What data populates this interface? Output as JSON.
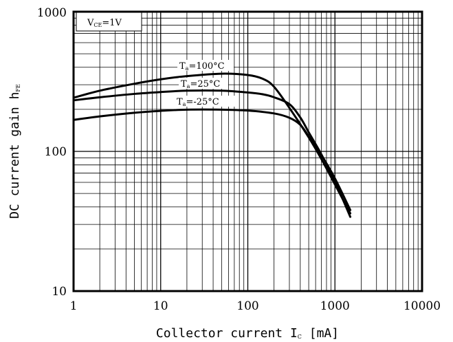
{
  "chart_data": {
    "type": "line",
    "xlabel_parts": [
      "Collector current  I",
      "C",
      " [mA]"
    ],
    "ylabel_parts": [
      "DC current gain h",
      "FE"
    ],
    "xscale": "log",
    "yscale": "log",
    "xlim": [
      1,
      10000
    ],
    "ylim": [
      10,
      1000
    ],
    "grid": true,
    "xticks": [
      "1",
      "10",
      "100",
      "1000",
      "10000"
    ],
    "yticks": [
      "10",
      "100",
      "1000"
    ],
    "condition_box": [
      "V",
      "CE",
      "=1V"
    ],
    "series": [
      {
        "name_parts": [
          "T",
          "a",
          "=100°C"
        ],
        "x": [
          1,
          2,
          5,
          10,
          20,
          50,
          100,
          150,
          200,
          300,
          500,
          700,
          1000,
          1500
        ],
        "y": [
          242,
          272,
          305,
          328,
          346,
          360,
          352,
          330,
          290,
          205,
          126,
          88,
          58,
          36
        ]
      },
      {
        "name_parts": [
          "T",
          "a",
          "=25°C"
        ],
        "x": [
          1,
          2,
          5,
          10,
          20,
          50,
          100,
          150,
          200,
          300,
          400,
          500,
          700,
          1000,
          1500
        ],
        "y": [
          232,
          244,
          258,
          266,
          272,
          272,
          264,
          256,
          244,
          218,
          175,
          137,
          95,
          61,
          34
        ]
      },
      {
        "name_parts": [
          "T",
          "a",
          "=-25°C"
        ],
        "x": [
          1,
          2,
          5,
          10,
          20,
          50,
          100,
          200,
          300,
          400,
          500,
          700,
          1000,
          1500
        ],
        "y": [
          168,
          178,
          189,
          195,
          199,
          199,
          196,
          187,
          174,
          155,
          128,
          94,
          64,
          38
        ]
      }
    ]
  }
}
